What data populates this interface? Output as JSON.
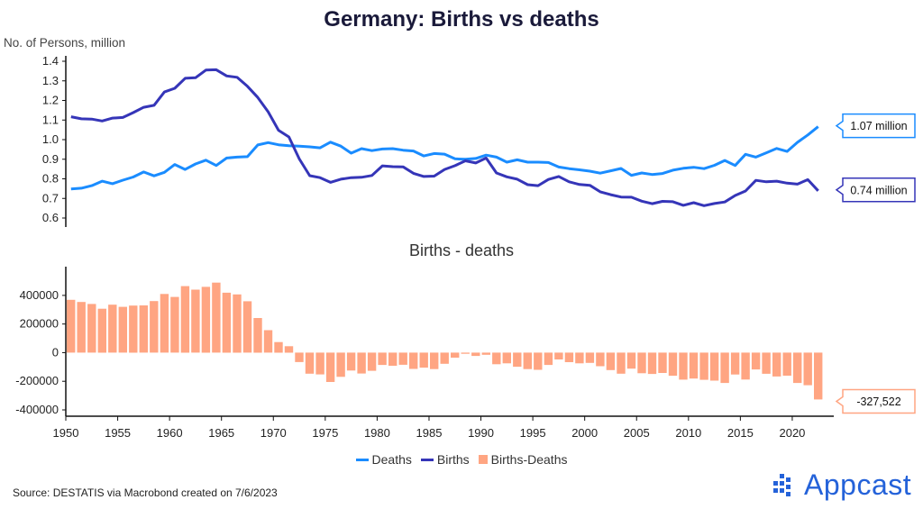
{
  "title": "Germany: Births vs deaths",
  "top_ylabel": "No. of Persons, million",
  "bottom_subtitle": "Births - deaths",
  "source": "Source: DESTATIS via Macrobond created on 7/6/2023",
  "logo_text": "Appcast",
  "colors": {
    "deaths": "#1a8cff",
    "births": "#3535b8",
    "diff": "#ffa582",
    "axis": "#111111"
  },
  "legend": [
    {
      "label": "Deaths",
      "kind": "line",
      "color": "#1a8cff"
    },
    {
      "label": "Births",
      "kind": "line",
      "color": "#3535b8"
    },
    {
      "label": "Births-Deaths",
      "kind": "box",
      "color": "#ffa582"
    }
  ],
  "callouts": {
    "deaths": "1.07 million",
    "births": "0.74 million",
    "diff": "-327,522"
  },
  "chart_data": [
    {
      "type": "line",
      "ylabel": "No. of Persons, million",
      "ylim": [
        0.6,
        1.4
      ],
      "yticks": [
        "0.6",
        "0.7",
        "0.8",
        "0.9",
        "1.0",
        "1.1",
        "1.2",
        "1.3",
        "1.4"
      ],
      "xlim": [
        1950,
        2024
      ],
      "x_start": 1950,
      "series": [
        {
          "name": "Deaths",
          "values": [
            0.748,
            0.752,
            0.765,
            0.788,
            0.775,
            0.793,
            0.809,
            0.835,
            0.815,
            0.833,
            0.873,
            0.848,
            0.876,
            0.895,
            0.868,
            0.906,
            0.911,
            0.913,
            0.973,
            0.985,
            0.974,
            0.969,
            0.967,
            0.963,
            0.958,
            0.987,
            0.967,
            0.931,
            0.954,
            0.944,
            0.952,
            0.954,
            0.946,
            0.942,
            0.917,
            0.929,
            0.926,
            0.902,
            0.9,
            0.904,
            0.921,
            0.911,
            0.885,
            0.897,
            0.885,
            0.885,
            0.883,
            0.86,
            0.852,
            0.846,
            0.839,
            0.829,
            0.841,
            0.853,
            0.818,
            0.83,
            0.822,
            0.827,
            0.844,
            0.854,
            0.859,
            0.852,
            0.869,
            0.894,
            0.868,
            0.925,
            0.911,
            0.933,
            0.955,
            0.94,
            0.986,
            1.024,
            1.066
          ]
        },
        {
          "name": "Births",
          "values": [
            1.117,
            1.106,
            1.105,
            1.095,
            1.11,
            1.113,
            1.138,
            1.165,
            1.175,
            1.243,
            1.262,
            1.313,
            1.316,
            1.355,
            1.357,
            1.325,
            1.318,
            1.272,
            1.215,
            1.142,
            1.048,
            1.014,
            0.901,
            0.816,
            0.806,
            0.782,
            0.798,
            0.806,
            0.808,
            0.817,
            0.866,
            0.862,
            0.861,
            0.828,
            0.812,
            0.814,
            0.848,
            0.867,
            0.892,
            0.881,
            0.906,
            0.83,
            0.81,
            0.798,
            0.77,
            0.765,
            0.797,
            0.812,
            0.785,
            0.771,
            0.767,
            0.734,
            0.719,
            0.707,
            0.706,
            0.686,
            0.673,
            0.685,
            0.683,
            0.665,
            0.678,
            0.663,
            0.674,
            0.682,
            0.715,
            0.738,
            0.792,
            0.785,
            0.788,
            0.778,
            0.773,
            0.796,
            0.739
          ]
        }
      ]
    },
    {
      "type": "bar",
      "title": "Births - deaths",
      "ylim": [
        -400000,
        500000
      ],
      "yticks": [
        "-400000",
        "-200000",
        "0",
        "200000",
        "400000"
      ],
      "xticks": [
        "1950",
        "1955",
        "1960",
        "1965",
        "1970",
        "1975",
        "1980",
        "1985",
        "1990",
        "1995",
        "2000",
        "2005",
        "2010",
        "2015",
        "2020"
      ],
      "x_start": 1950,
      "series": [
        {
          "name": "Births-Deaths",
          "values": [
            369000,
            354000,
            340000,
            307000,
            335000,
            320000,
            329000,
            330000,
            360000,
            410000,
            389000,
            465000,
            440000,
            460000,
            489000,
            419000,
            407000,
            359000,
            242000,
            157000,
            74000,
            45000,
            -66000,
            -147000,
            -152000,
            -205000,
            -169000,
            -125000,
            -146000,
            -127000,
            -86000,
            -92000,
            -85000,
            -114000,
            -105000,
            -115000,
            -78000,
            -35000,
            -8000,
            -23000,
            -15000,
            -81000,
            -75000,
            -99000,
            -115000,
            -120000,
            -86000,
            -48000,
            -67000,
            -75000,
            -72000,
            -95000,
            -122000,
            -147000,
            -112000,
            -144000,
            -149000,
            -142000,
            -162000,
            -189000,
            -181000,
            -190000,
            -196000,
            -212000,
            -153000,
            -188000,
            -118000,
            -148000,
            -167000,
            -161000,
            -212000,
            -228000,
            -327522
          ]
        }
      ]
    }
  ]
}
